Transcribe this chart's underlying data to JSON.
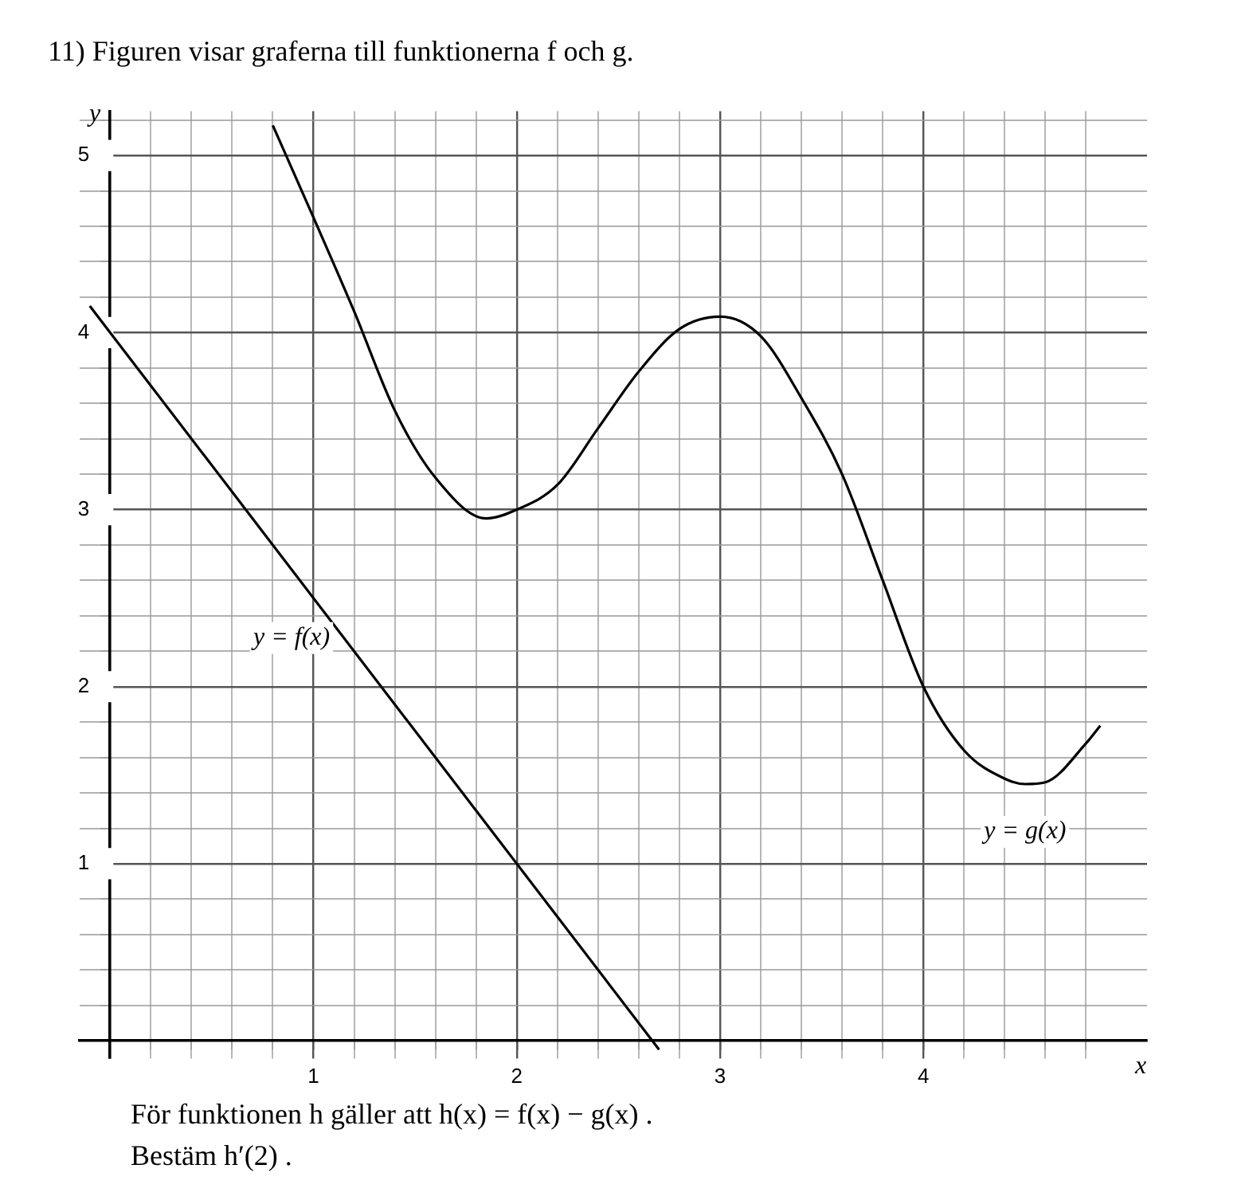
{
  "chart_data": {
    "type": "line",
    "title": "11)  Figuren visar graferna till funktionerna f och g.",
    "xlabel": "x",
    "ylabel": "y",
    "xlim": [
      -0.15,
      5.1
    ],
    "ylim": [
      -0.1,
      5.25
    ],
    "xticks": [
      {
        "value": 0,
        "label": null
      },
      {
        "value": 0.2,
        "label": null
      },
      {
        "value": 0.4,
        "label": null
      },
      {
        "value": 0.6,
        "label": null
      },
      {
        "value": 0.8,
        "label": null
      },
      1,
      {
        "value": 1.2,
        "label": null
      },
      {
        "value": 1.4,
        "label": null
      },
      {
        "value": 1.6,
        "label": null
      },
      {
        "value": 1.8,
        "label": null
      },
      2,
      {
        "value": 2.2,
        "label": null
      },
      {
        "value": 2.4,
        "label": null
      },
      {
        "value": 2.6,
        "label": null
      },
      {
        "value": 2.8,
        "label": null
      },
      3,
      {
        "value": 3.2,
        "label": null
      },
      {
        "value": 3.4,
        "label": null
      },
      {
        "value": 3.6,
        "label": null
      },
      {
        "value": 3.8,
        "label": null
      },
      4,
      {
        "value": 4.2,
        "label": null
      },
      {
        "value": 4.4,
        "label": null
      },
      {
        "value": 4.6,
        "label": null
      },
      {
        "value": 4.8,
        "label": null
      }
    ],
    "yticks": [
      {
        "value": 0,
        "label": null
      },
      {
        "value": 0.2,
        "label": null
      },
      {
        "value": 0.4,
        "label": null
      },
      {
        "value": 0.6,
        "label": null
      },
      {
        "value": 0.8,
        "label": null
      },
      1,
      {
        "value": 1.2,
        "label": null
      },
      {
        "value": 1.4,
        "label": null
      },
      {
        "value": 1.6,
        "label": null
      },
      {
        "value": 1.8,
        "label": null
      },
      2,
      {
        "value": 2.2,
        "label": null
      },
      {
        "value": 2.4,
        "label": null
      },
      {
        "value": 2.6,
        "label": null
      },
      {
        "value": 2.8,
        "label": null
      },
      3,
      {
        "value": 3.2,
        "label": null
      },
      {
        "value": 3.4,
        "label": null
      },
      {
        "value": 3.6,
        "label": null
      },
      {
        "value": 3.8,
        "label": null
      },
      4,
      {
        "value": 4.2,
        "label": null
      },
      {
        "value": 4.4,
        "label": null
      },
      {
        "value": 4.6,
        "label": null
      },
      {
        "value": 4.8,
        "label": null
      },
      5,
      {
        "value": 5.2,
        "label": null
      }
    ],
    "grid": true,
    "legend": false,
    "marker": "none",
    "line_style": "solid",
    "series": [
      {
        "name": "y = f(x)",
        "color": "#000000",
        "x": [
          -0.1,
          2.7
        ],
        "values": [
          4.15,
          -0.05
        ]
      },
      {
        "name": "y = g(x)",
        "color": "#000000",
        "x": [
          0.8,
          1,
          1.2,
          1.4,
          1.6,
          1.85,
          2,
          2.2,
          2.4,
          2.6,
          2.8,
          3,
          3.2,
          3.4,
          3.6,
          3.8,
          4,
          4.2,
          4.4,
          4.5,
          4.6,
          4.8,
          4.87
        ],
        "values": [
          5.17,
          4.65,
          4.12,
          3.56,
          3.18,
          2.95,
          3,
          3.14,
          3.46,
          3.78,
          4.02,
          4.09,
          3.98,
          3.63,
          3.2,
          2.6,
          2,
          1.64,
          1.48,
          1.45,
          1.46,
          1.68,
          1.78
        ]
      }
    ],
    "annotations": [
      "För funktionen h gäller att h(x) = f(x) − g(x) .",
      "Bestäm  h′(2) ."
    ]
  }
}
